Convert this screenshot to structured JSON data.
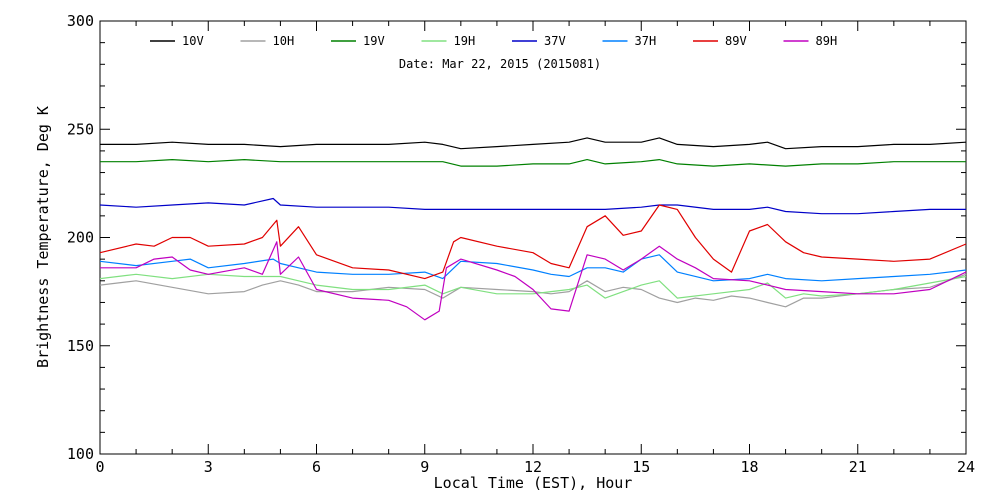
{
  "chart_data": {
    "type": "line",
    "title": "",
    "subtitle": "Date: Mar 22, 2015 (2015081)",
    "xlabel": "Local Time (EST), Hour",
    "ylabel": "Brightness Temperature, Deg K",
    "xlim": [
      0,
      24
    ],
    "ylim": [
      100,
      300
    ],
    "xticks": [
      0,
      3,
      6,
      9,
      12,
      15,
      18,
      21,
      24
    ],
    "yticks": [
      100,
      150,
      200,
      250,
      300
    ],
    "grid": false,
    "legend_position": "top",
    "series": [
      {
        "name": "10V",
        "color": "#000000",
        "x": [
          0,
          1,
          2,
          3,
          4,
          5,
          6,
          7,
          8,
          9,
          9.5,
          10,
          11,
          12,
          13,
          13.5,
          14,
          15,
          15.5,
          16,
          17,
          18,
          18.5,
          19,
          20,
          21,
          22,
          23,
          24
        ],
        "y": [
          243,
          243,
          244,
          243,
          243,
          242,
          243,
          243,
          243,
          244,
          243,
          241,
          242,
          243,
          244,
          246,
          244,
          244,
          246,
          243,
          242,
          243,
          244,
          241,
          242,
          242,
          243,
          243,
          244
        ]
      },
      {
        "name": "10H",
        "color": "#a0a0a0",
        "x": [
          0,
          1,
          2,
          3,
          4,
          4.5,
          5,
          5.5,
          6,
          7,
          8,
          9,
          9.5,
          10,
          11,
          12,
          12.5,
          13,
          13.5,
          14,
          14.5,
          15,
          15.5,
          16,
          16.5,
          17,
          17.5,
          18,
          18.5,
          19,
          19.5,
          20,
          21,
          22,
          23,
          24
        ],
        "y": [
          178,
          180,
          177,
          174,
          175,
          178,
          180,
          178,
          175,
          175,
          177,
          176,
          172,
          177,
          176,
          175,
          174,
          175,
          180,
          175,
          177,
          176,
          172,
          170,
          172,
          171,
          173,
          172,
          170,
          168,
          172,
          172,
          174,
          176,
          177,
          183
        ]
      },
      {
        "name": "19V",
        "color": "#008000",
        "x": [
          0,
          1,
          2,
          3,
          4,
          5,
          6,
          7,
          8,
          9,
          9.5,
          10,
          11,
          12,
          13,
          13.5,
          14,
          15,
          15.5,
          16,
          17,
          18,
          19,
          20,
          21,
          22,
          23,
          24
        ],
        "y": [
          235,
          235,
          236,
          235,
          236,
          235,
          235,
          235,
          235,
          235,
          235,
          233,
          233,
          234,
          234,
          236,
          234,
          235,
          236,
          234,
          233,
          234,
          233,
          234,
          234,
          235,
          235,
          235
        ]
      },
      {
        "name": "19H",
        "color": "#80e080",
        "x": [
          0,
          1,
          2,
          3,
          4,
          5,
          5.5,
          6,
          7,
          8,
          9,
          9.5,
          10,
          11,
          12,
          12.5,
          13,
          13.5,
          14,
          14.5,
          15,
          15.5,
          16,
          17,
          18,
          18.5,
          19,
          19.5,
          20,
          21,
          22,
          23,
          24
        ],
        "y": [
          181,
          183,
          181,
          183,
          182,
          182,
          180,
          178,
          176,
          176,
          178,
          174,
          177,
          174,
          174,
          175,
          176,
          178,
          172,
          175,
          178,
          180,
          172,
          174,
          176,
          179,
          172,
          174,
          173,
          174,
          176,
          179,
          182
        ]
      },
      {
        "name": "37V",
        "color": "#0000c8",
        "x": [
          0,
          1,
          2,
          3,
          4,
          4.8,
          5,
          6,
          7,
          8,
          9,
          10,
          11,
          12,
          13,
          14,
          15,
          15.5,
          16,
          17,
          18,
          18.5,
          19,
          20,
          21,
          22,
          23,
          24
        ],
        "y": [
          215,
          214,
          215,
          216,
          215,
          218,
          215,
          214,
          214,
          214,
          213,
          213,
          213,
          213,
          213,
          213,
          214,
          215,
          215,
          213,
          213,
          214,
          212,
          211,
          211,
          212,
          213,
          213
        ]
      },
      {
        "name": "37H",
        "color": "#0080ff",
        "x": [
          0,
          1,
          2,
          2.5,
          3,
          4,
          4.8,
          5,
          5.5,
          6,
          7,
          8,
          9,
          9.5,
          10,
          11,
          12,
          12.5,
          13,
          13.5,
          14,
          14.5,
          15,
          15.5,
          16,
          17,
          18,
          18.5,
          19,
          20,
          21,
          22,
          23,
          24
        ],
        "y": [
          189,
          187,
          189,
          190,
          186,
          188,
          190,
          188,
          186,
          184,
          183,
          183,
          184,
          181,
          189,
          188,
          185,
          183,
          182,
          186,
          186,
          184,
          190,
          192,
          184,
          180,
          181,
          183,
          181,
          180,
          181,
          182,
          183,
          185
        ]
      },
      {
        "name": "89V",
        "color": "#e00000",
        "x": [
          0,
          1,
          1.5,
          2,
          2.5,
          3,
          4,
          4.5,
          4.9,
          5,
          5.5,
          6,
          7,
          8,
          9,
          9.5,
          9.8,
          10,
          11,
          12,
          12.5,
          13,
          13.5,
          14,
          14.5,
          15,
          15.5,
          16,
          16.5,
          17,
          17.5,
          18,
          18.5,
          19,
          19.5,
          20,
          21,
          22,
          23,
          24
        ],
        "y": [
          193,
          197,
          196,
          200,
          200,
          196,
          197,
          200,
          208,
          196,
          205,
          192,
          186,
          185,
          181,
          184,
          198,
          200,
          196,
          193,
          188,
          186,
          205,
          210,
          201,
          203,
          215,
          213,
          200,
          190,
          184,
          203,
          206,
          198,
          193,
          191,
          190,
          189,
          190,
          197
        ]
      },
      {
        "name": "89H",
        "color": "#c000c0",
        "x": [
          0,
          1,
          1.5,
          2,
          2.5,
          3,
          4,
          4.5,
          4.9,
          5,
          5.5,
          6,
          7,
          8,
          8.5,
          9,
          9.4,
          9.6,
          10,
          11,
          11.5,
          12,
          12.5,
          13,
          13.5,
          14,
          14.5,
          15,
          15.5,
          16,
          16.5,
          17,
          18,
          18.5,
          19,
          20,
          21,
          22,
          23,
          24
        ],
        "y": [
          186,
          186,
          190,
          191,
          185,
          183,
          186,
          183,
          198,
          183,
          191,
          176,
          172,
          171,
          168,
          162,
          166,
          186,
          190,
          185,
          182,
          176,
          167,
          166,
          192,
          190,
          185,
          190,
          196,
          190,
          186,
          181,
          180,
          178,
          176,
          175,
          174,
          174,
          176,
          184
        ]
      }
    ]
  }
}
